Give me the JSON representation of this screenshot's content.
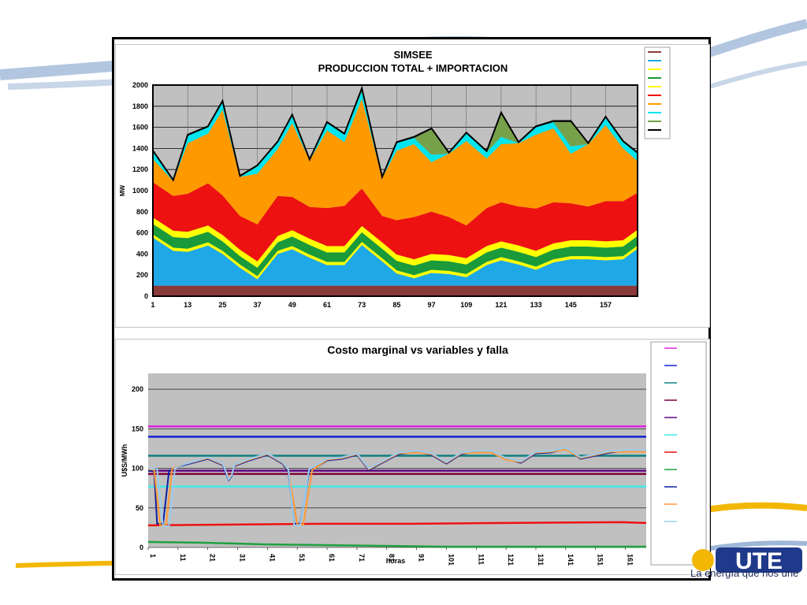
{
  "brand": {
    "logo_text": "UTE",
    "tagline": "La energía que nos une",
    "colors": {
      "primary": "#1f3a8a",
      "accent": "#f2b705"
    }
  },
  "chart_data": [
    {
      "type": "area",
      "title": "SIMSEE",
      "subtitle": "PRODUCCION TOTAL + IMPORTACION",
      "xlabel": "",
      "ylabel": "MW",
      "ylim": [
        0,
        2000
      ],
      "yticks": [
        0,
        200,
        400,
        600,
        800,
        1000,
        1200,
        1400,
        1600,
        1800,
        2000
      ],
      "xlim": [
        1,
        168
      ],
      "xticks": [
        1,
        13,
        25,
        37,
        49,
        61,
        73,
        85,
        97,
        109,
        121,
        133,
        145,
        157
      ],
      "legend_position": "right",
      "grid": true,
      "stacked": true,
      "x": [
        1,
        8,
        13,
        20,
        25,
        31,
        37,
        44,
        49,
        55,
        61,
        67,
        73,
        80,
        85,
        91,
        97,
        103,
        109,
        116,
        121,
        127,
        133,
        139,
        145,
        151,
        157,
        163,
        168
      ],
      "series": [
        {
          "color": "#8b3a3a",
          "values": [
            100,
            100,
            100,
            100,
            100,
            100,
            100,
            100,
            100,
            100,
            100,
            100,
            100,
            100,
            100,
            100,
            100,
            100,
            100,
            100,
            100,
            100,
            100,
            100,
            100,
            100,
            100,
            100,
            100
          ]
        },
        {
          "color": "#1fa8e6",
          "values": [
            455,
            330,
            320,
            380,
            300,
            170,
            60,
            300,
            345,
            265,
            195,
            195,
            385,
            230,
            115,
            70,
            120,
            110,
            80,
            195,
            240,
            200,
            150,
            220,
            250,
            250,
            240,
            250,
            350
          ]
        },
        {
          "color": "#ffff00",
          "values": [
            30,
            30,
            30,
            30,
            30,
            30,
            30,
            30,
            30,
            30,
            30,
            30,
            30,
            30,
            30,
            30,
            30,
            30,
            30,
            30,
            30,
            30,
            30,
            30,
            30,
            30,
            30,
            30,
            30
          ]
        },
        {
          "color": "#1a9a3a",
          "values": [
            100,
            100,
            100,
            100,
            90,
            80,
            80,
            80,
            90,
            90,
            90,
            90,
            90,
            90,
            90,
            90,
            90,
            90,
            90,
            90,
            90,
            90,
            90,
            90,
            90,
            90,
            90,
            90,
            90
          ]
        },
        {
          "color": "#ffff00",
          "values": [
            60,
            60,
            60,
            60,
            60,
            60,
            60,
            60,
            60,
            60,
            60,
            60,
            60,
            60,
            60,
            60,
            60,
            60,
            60,
            60,
            60,
            60,
            60,
            60,
            60,
            60,
            60,
            60,
            60
          ]
        },
        {
          "color": "#ee1111",
          "values": [
            335,
            330,
            360,
            400,
            375,
            320,
            350,
            380,
            315,
            300,
            360,
            380,
            355,
            250,
            325,
            400,
            400,
            360,
            310,
            360,
            370,
            370,
            400,
            390,
            350,
            320,
            380,
            370,
            350
          ]
        },
        {
          "color": "#ff9900",
          "values": [
            220,
            140,
            480,
            470,
            810,
            370,
            480,
            445,
            700,
            440,
            735,
            605,
            850,
            360,
            660,
            690,
            470,
            600,
            800,
            470,
            550,
            600,
            700,
            700,
            470,
            590,
            720,
            500,
            300
          ]
        },
        {
          "color": "#00e5ee",
          "values": [
            70,
            0,
            70,
            60,
            75,
            0,
            70,
            60,
            70,
            0,
            70,
            70,
            70,
            0,
            70,
            60,
            70,
            0,
            70,
            60,
            70,
            0,
            70,
            60,
            70,
            0,
            70,
            60,
            70
          ]
        },
        {
          "color": "#77a04a",
          "values": [
            0,
            0,
            0,
            0,
            0,
            0,
            0,
            0,
            0,
            0,
            0,
            0,
            20,
            0,
            0,
            0,
            240,
            0,
            0,
            0,
            220,
            0,
            0,
            0,
            230,
            0,
            0,
            0,
            0
          ]
        },
        {
          "color": "#000000",
          "values": [
            10,
            10,
            10,
            10,
            10,
            10,
            10,
            10,
            10,
            10,
            10,
            10,
            10,
            10,
            10,
            10,
            10,
            10,
            10,
            10,
            10,
            10,
            10,
            10,
            10,
            10,
            10,
            10,
            10
          ]
        }
      ]
    },
    {
      "type": "line",
      "title": "Costo marginal vs variables y falla",
      "xlabel": "horas",
      "ylabel": "U$S/MWh",
      "ylim": [
        0,
        220
      ],
      "yticks": [
        0,
        50,
        100,
        150,
        200
      ],
      "xlim": [
        1,
        168
      ],
      "xticks": [
        1,
        11,
        21,
        31,
        41,
        51,
        61,
        71,
        81,
        91,
        101,
        111,
        121,
        131,
        141,
        151,
        161
      ],
      "legend_position": "right",
      "grid": true,
      "series": [
        {
          "color": "#e020e0",
          "x": [
            1,
            168
          ],
          "values": [
            153,
            153
          ]
        },
        {
          "color": "#1020d0",
          "x": [
            1,
            168
          ],
          "values": [
            140,
            140
          ]
        },
        {
          "color": "#108080",
          "x": [
            1,
            168
          ],
          "values": [
            116,
            116
          ]
        },
        {
          "color": "#800040",
          "x": [
            1,
            168
          ],
          "values": [
            93,
            93
          ]
        },
        {
          "color": "#600080",
          "x": [
            1,
            168
          ],
          "values": [
            97,
            97
          ]
        },
        {
          "color": "#40e8e8",
          "x": [
            1,
            168
          ],
          "values": [
            77,
            77
          ]
        },
        {
          "color": "#ee1111",
          "x": [
            1,
            30,
            60,
            90,
            120,
            160,
            168
          ],
          "values": [
            28,
            29,
            30,
            30,
            31,
            32,
            31
          ]
        },
        {
          "color": "#20a040",
          "x": [
            1,
            20,
            40,
            60,
            80,
            100,
            168
          ],
          "values": [
            7,
            6,
            4,
            3,
            2,
            1,
            1
          ]
        },
        {
          "color": "#1020a0",
          "x": [
            1,
            3,
            4,
            6,
            8,
            12,
            21,
            26,
            28,
            29,
            30,
            35,
            41,
            46,
            48,
            50,
            52,
            55,
            61,
            66,
            71,
            75,
            80,
            85,
            91,
            96,
            101,
            106,
            111,
            116,
            121,
            126,
            131,
            136,
            141,
            146,
            151,
            156,
            161,
            168
          ],
          "values": [
            97,
            96,
            30,
            30,
            97,
            103,
            112,
            104,
            85,
            90,
            103,
            110,
            117,
            106,
            96,
            30,
            30,
            96,
            110,
            112,
            117,
            98,
            108,
            118,
            121,
            117,
            106,
            118,
            121,
            121,
            112,
            107,
            119,
            120,
            125,
            112,
            116,
            120,
            122,
            122
          ]
        },
        {
          "color": "#ff9933",
          "x": [
            1,
            3,
            5,
            7,
            9,
            12,
            21,
            26,
            28,
            29,
            30,
            35,
            41,
            46,
            48,
            51,
            53,
            56,
            61,
            66,
            71,
            75,
            80,
            85,
            91,
            96,
            101,
            106,
            111,
            116,
            121,
            126,
            131,
            136,
            141,
            146,
            151,
            156,
            161,
            168
          ],
          "values": [
            99,
            98,
            28,
            28,
            99,
            104,
            113,
            105,
            88,
            92,
            104,
            111,
            118,
            107,
            98,
            29,
            29,
            98,
            111,
            113,
            118,
            99,
            109,
            119,
            120,
            118,
            107,
            119,
            120,
            120,
            111,
            108,
            120,
            121,
            124,
            113,
            117,
            121,
            121,
            121
          ]
        },
        {
          "color": "#99ccee",
          "x": [
            1,
            4,
            6,
            8,
            10,
            13,
            21,
            26,
            28,
            29,
            30,
            35,
            41,
            46,
            48,
            50,
            52,
            55,
            61,
            66,
            71,
            75,
            80,
            85,
            91,
            96,
            101,
            106,
            111,
            116,
            121,
            126,
            131,
            136,
            141,
            146,
            151,
            156,
            161,
            168
          ],
          "values": [
            100,
            99,
            27,
            27,
            100,
            105,
            114,
            106,
            86,
            91,
            105,
            112,
            119,
            108,
            99,
            28,
            28,
            99,
            112,
            114,
            119,
            100,
            110,
            120,
            122,
            119,
            108,
            120,
            122,
            122,
            113,
            109,
            121,
            122,
            126,
            114,
            118,
            122,
            123,
            123
          ]
        }
      ]
    }
  ]
}
